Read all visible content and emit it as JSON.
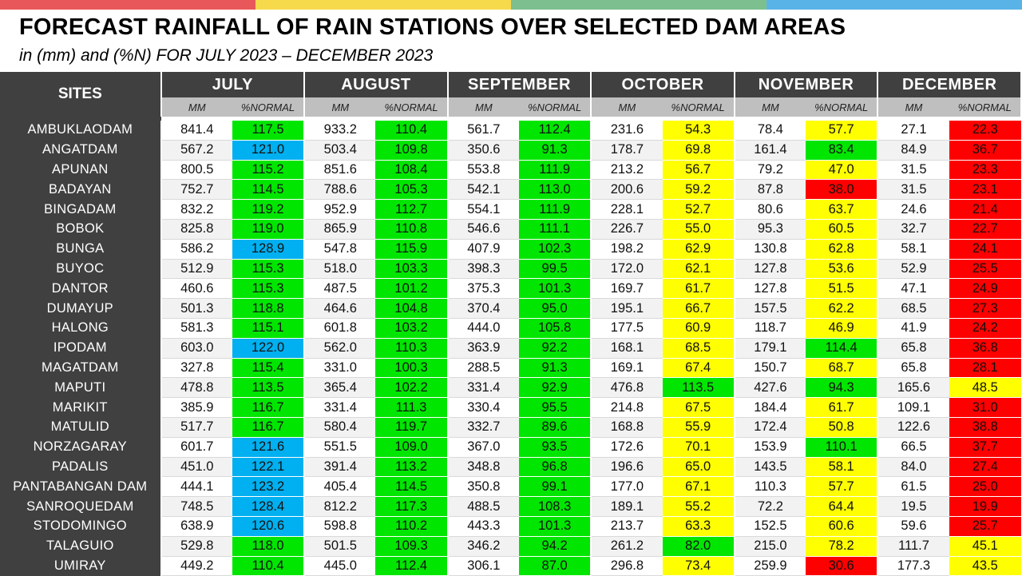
{
  "title": "FORECAST RAINFALL OF RAIN STATIONS OVER SELECTED DAM AREAS",
  "subtitle": "in (mm) and (%N) FOR JULY 2023 – DECEMBER 2023",
  "colors": {
    "topbar": [
      "#e8585a",
      "#f7d94c",
      "#7dbf8e",
      "#5ab3e6"
    ],
    "header_dark": "#404040",
    "subheader_gray": "#bfbfbf",
    "green": "#00e600",
    "blue": "#00b0f0",
    "yellow": "#ffff00",
    "red": "#ff0000"
  },
  "table": {
    "sites_header": "SITES",
    "months": [
      "JULY",
      "AUGUST",
      "SEPTEMBER",
      "OCTOBER",
      "NOVEMBER",
      "DECEMBER"
    ],
    "sub_mm": "MM",
    "sub_pct": "%NORMAL",
    "rows": [
      {
        "site": "AMBUKLAODAM",
        "cells": [
          [
            "841.4",
            "117.5",
            "green"
          ],
          [
            "933.2",
            "110.4",
            "green"
          ],
          [
            "561.7",
            "112.4",
            "green"
          ],
          [
            "231.6",
            "54.3",
            "yellow"
          ],
          [
            "78.4",
            "57.7",
            "yellow"
          ],
          [
            "27.1",
            "22.3",
            "red"
          ]
        ]
      },
      {
        "site": "ANGATDAM",
        "cells": [
          [
            "567.2",
            "121.0",
            "blue"
          ],
          [
            "503.4",
            "109.8",
            "green"
          ],
          [
            "350.6",
            "91.3",
            "green"
          ],
          [
            "178.7",
            "69.8",
            "yellow"
          ],
          [
            "161.4",
            "83.4",
            "green"
          ],
          [
            "84.9",
            "36.7",
            "red"
          ]
        ]
      },
      {
        "site": "APUNAN",
        "cells": [
          [
            "800.5",
            "115.2",
            "green"
          ],
          [
            "851.6",
            "108.4",
            "green"
          ],
          [
            "553.8",
            "111.9",
            "green"
          ],
          [
            "213.2",
            "56.7",
            "yellow"
          ],
          [
            "79.2",
            "47.0",
            "yellow"
          ],
          [
            "31.5",
            "23.3",
            "red"
          ]
        ]
      },
      {
        "site": "BADAYAN",
        "cells": [
          [
            "752.7",
            "114.5",
            "green"
          ],
          [
            "788.6",
            "105.3",
            "green"
          ],
          [
            "542.1",
            "113.0",
            "green"
          ],
          [
            "200.6",
            "59.2",
            "yellow"
          ],
          [
            "87.8",
            "38.0",
            "red"
          ],
          [
            "31.5",
            "23.1",
            "red"
          ]
        ]
      },
      {
        "site": "BINGADAM",
        "cells": [
          [
            "832.2",
            "119.2",
            "green"
          ],
          [
            "952.9",
            "112.7",
            "green"
          ],
          [
            "554.1",
            "111.9",
            "green"
          ],
          [
            "228.1",
            "52.7",
            "yellow"
          ],
          [
            "80.6",
            "63.7",
            "yellow"
          ],
          [
            "24.6",
            "21.4",
            "red"
          ]
        ]
      },
      {
        "site": "BOBOK",
        "cells": [
          [
            "825.8",
            "119.0",
            "green"
          ],
          [
            "865.9",
            "110.8",
            "green"
          ],
          [
            "546.6",
            "111.1",
            "green"
          ],
          [
            "226.7",
            "55.0",
            "yellow"
          ],
          [
            "95.3",
            "60.5",
            "yellow"
          ],
          [
            "32.7",
            "22.7",
            "red"
          ]
        ]
      },
      {
        "site": "BUNGA",
        "cells": [
          [
            "586.2",
            "128.9",
            "blue"
          ],
          [
            "547.8",
            "115.9",
            "green"
          ],
          [
            "407.9",
            "102.3",
            "green"
          ],
          [
            "198.2",
            "62.9",
            "yellow"
          ],
          [
            "130.8",
            "62.8",
            "yellow"
          ],
          [
            "58.1",
            "24.1",
            "red"
          ]
        ]
      },
      {
        "site": "BUYOC",
        "cells": [
          [
            "512.9",
            "115.3",
            "green"
          ],
          [
            "518.0",
            "103.3",
            "green"
          ],
          [
            "398.3",
            "99.5",
            "green"
          ],
          [
            "172.0",
            "62.1",
            "yellow"
          ],
          [
            "127.8",
            "53.6",
            "yellow"
          ],
          [
            "52.9",
            "25.5",
            "red"
          ]
        ]
      },
      {
        "site": "DANTOR",
        "cells": [
          [
            "460.6",
            "115.3",
            "green"
          ],
          [
            "487.5",
            "101.2",
            "green"
          ],
          [
            "375.3",
            "101.3",
            "green"
          ],
          [
            "169.7",
            "61.7",
            "yellow"
          ],
          [
            "127.8",
            "51.5",
            "yellow"
          ],
          [
            "47.1",
            "24.9",
            "red"
          ]
        ]
      },
      {
        "site": "DUMAYUP",
        "cells": [
          [
            "501.3",
            "118.8",
            "green"
          ],
          [
            "464.6",
            "104.8",
            "green"
          ],
          [
            "370.4",
            "95.0",
            "green"
          ],
          [
            "195.1",
            "66.7",
            "yellow"
          ],
          [
            "157.5",
            "62.2",
            "yellow"
          ],
          [
            "68.5",
            "27.3",
            "red"
          ]
        ]
      },
      {
        "site": "HALONG",
        "cells": [
          [
            "581.3",
            "115.1",
            "green"
          ],
          [
            "601.8",
            "103.2",
            "green"
          ],
          [
            "444.0",
            "105.8",
            "green"
          ],
          [
            "177.5",
            "60.9",
            "yellow"
          ],
          [
            "118.7",
            "46.9",
            "yellow"
          ],
          [
            "41.9",
            "24.2",
            "red"
          ]
        ]
      },
      {
        "site": "IPODAM",
        "cells": [
          [
            "603.0",
            "122.0",
            "blue"
          ],
          [
            "562.0",
            "110.3",
            "green"
          ],
          [
            "363.9",
            "92.2",
            "green"
          ],
          [
            "168.1",
            "68.5",
            "yellow"
          ],
          [
            "179.1",
            "114.4",
            "green"
          ],
          [
            "65.8",
            "36.8",
            "red"
          ]
        ]
      },
      {
        "site": "MAGATDAM",
        "cells": [
          [
            "327.8",
            "115.4",
            "green"
          ],
          [
            "331.0",
            "100.3",
            "green"
          ],
          [
            "288.5",
            "91.3",
            "green"
          ],
          [
            "169.1",
            "67.4",
            "yellow"
          ],
          [
            "150.7",
            "68.7",
            "yellow"
          ],
          [
            "65.8",
            "28.1",
            "red"
          ]
        ]
      },
      {
        "site": "MAPUTI",
        "cells": [
          [
            "478.8",
            "113.5",
            "green"
          ],
          [
            "365.4",
            "102.2",
            "green"
          ],
          [
            "331.4",
            "92.9",
            "green"
          ],
          [
            "476.8",
            "113.5",
            "green"
          ],
          [
            "427.6",
            "94.3",
            "green"
          ],
          [
            "165.6",
            "48.5",
            "yellow"
          ]
        ]
      },
      {
        "site": "MARIKIT",
        "cells": [
          [
            "385.9",
            "116.7",
            "green"
          ],
          [
            "331.4",
            "111.3",
            "green"
          ],
          [
            "330.4",
            "95.5",
            "green"
          ],
          [
            "214.8",
            "67.5",
            "yellow"
          ],
          [
            "184.4",
            "61.7",
            "yellow"
          ],
          [
            "109.1",
            "31.0",
            "red"
          ]
        ]
      },
      {
        "site": "MATULID",
        "cells": [
          [
            "517.7",
            "116.7",
            "green"
          ],
          [
            "580.4",
            "119.7",
            "green"
          ],
          [
            "332.7",
            "89.6",
            "green"
          ],
          [
            "168.8",
            "55.9",
            "yellow"
          ],
          [
            "172.4",
            "50.8",
            "yellow"
          ],
          [
            "122.6",
            "38.8",
            "red"
          ]
        ]
      },
      {
        "site": "NORZAGARAY",
        "cells": [
          [
            "601.7",
            "121.6",
            "blue"
          ],
          [
            "551.5",
            "109.0",
            "green"
          ],
          [
            "367.0",
            "93.5",
            "green"
          ],
          [
            "172.6",
            "70.1",
            "yellow"
          ],
          [
            "153.9",
            "110.1",
            "green"
          ],
          [
            "66.5",
            "37.7",
            "red"
          ]
        ]
      },
      {
        "site": "PADALIS",
        "cells": [
          [
            "451.0",
            "122.1",
            "blue"
          ],
          [
            "391.4",
            "113.2",
            "green"
          ],
          [
            "348.8",
            "96.8",
            "green"
          ],
          [
            "196.6",
            "65.0",
            "yellow"
          ],
          [
            "143.5",
            "58.1",
            "yellow"
          ],
          [
            "84.0",
            "27.4",
            "red"
          ]
        ]
      },
      {
        "site": "PANTABANGAN DAM",
        "cells": [
          [
            "444.1",
            "123.2",
            "blue"
          ],
          [
            "405.4",
            "114.5",
            "green"
          ],
          [
            "350.8",
            "99.1",
            "green"
          ],
          [
            "177.0",
            "67.1",
            "yellow"
          ],
          [
            "110.3",
            "57.7",
            "yellow"
          ],
          [
            "61.5",
            "25.0",
            "red"
          ]
        ]
      },
      {
        "site": "SANROQUEDAM",
        "cells": [
          [
            "748.5",
            "128.4",
            "blue"
          ],
          [
            "812.2",
            "117.3",
            "green"
          ],
          [
            "488.5",
            "108.3",
            "green"
          ],
          [
            "189.1",
            "55.2",
            "yellow"
          ],
          [
            "72.2",
            "64.4",
            "yellow"
          ],
          [
            "19.5",
            "19.9",
            "red"
          ]
        ]
      },
      {
        "site": "STODOMINGO",
        "cells": [
          [
            "638.9",
            "120.6",
            "blue"
          ],
          [
            "598.8",
            "110.2",
            "green"
          ],
          [
            "443.3",
            "101.3",
            "green"
          ],
          [
            "213.7",
            "63.3",
            "yellow"
          ],
          [
            "152.5",
            "60.6",
            "yellow"
          ],
          [
            "59.6",
            "25.7",
            "red"
          ]
        ]
      },
      {
        "site": "TALAGUIO",
        "cells": [
          [
            "529.8",
            "118.0",
            "green"
          ],
          [
            "501.5",
            "109.3",
            "green"
          ],
          [
            "346.2",
            "94.2",
            "green"
          ],
          [
            "261.2",
            "82.0",
            "green"
          ],
          [
            "215.0",
            "78.2",
            "yellow"
          ],
          [
            "111.7",
            "45.1",
            "yellow"
          ]
        ]
      },
      {
        "site": "UMIRAY",
        "cells": [
          [
            "449.2",
            "110.4",
            "green"
          ],
          [
            "445.0",
            "112.4",
            "green"
          ],
          [
            "306.1",
            "87.0",
            "green"
          ],
          [
            "296.8",
            "73.4",
            "yellow"
          ],
          [
            "259.9",
            "30.6",
            "red"
          ],
          [
            "177.3",
            "43.5",
            "yellow"
          ]
        ]
      }
    ]
  }
}
